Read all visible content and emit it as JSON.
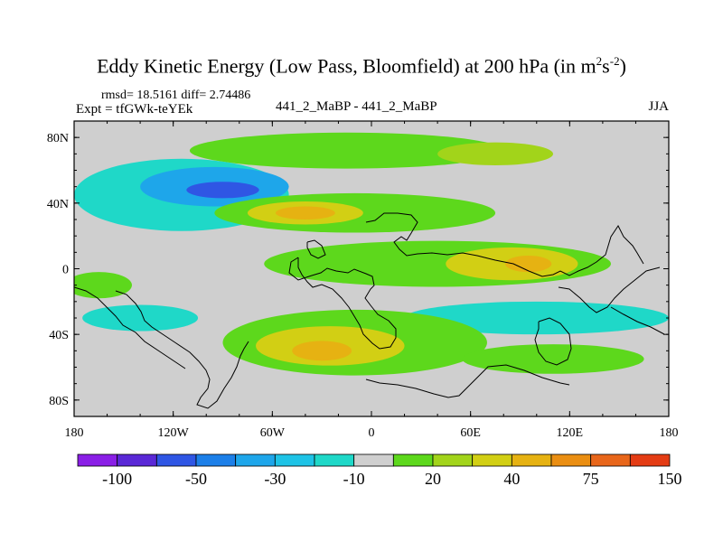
{
  "header": {
    "title_main": "Eddy Kinetic Energy (Low Pass, Bloomfield) at 200 hPa (in m",
    "title_sup1": "2",
    "title_mid": "s",
    "title_sup2": "-2",
    "title_end": ")",
    "stats": "rmsd= 18.5161 diff= 2.74486",
    "expt": "Expt = tfGWk-teYEk",
    "comparison": "441_2_MaBP - 441_2_MaBP",
    "season": "JJA"
  },
  "chart_data": {
    "type": "heatmap",
    "title": "Eddy Kinetic Energy (Low Pass, Bloomfield) at 200 hPa (in m2s-2)",
    "xlabel": "",
    "ylabel": "",
    "x_range": [
      -180,
      180
    ],
    "y_range": [
      -90,
      90
    ],
    "x_ticks": [
      {
        "value": -180,
        "label": "180"
      },
      {
        "value": -120,
        "label": "120W"
      },
      {
        "value": -60,
        "label": "60W"
      },
      {
        "value": 0,
        "label": "0"
      },
      {
        "value": 60,
        "label": "60E"
      },
      {
        "value": 120,
        "label": "120E"
      },
      {
        "value": 180,
        "label": "180"
      }
    ],
    "y_ticks": [
      {
        "value": 80,
        "label": "80N"
      },
      {
        "value": 40,
        "label": "40N"
      },
      {
        "value": 0,
        "label": "0"
      },
      {
        "value": -40,
        "label": "40S"
      },
      {
        "value": -80,
        "label": "80S"
      }
    ],
    "colorbar": {
      "colors": [
        "#8a1fe6",
        "#5a28d6",
        "#2f56e4",
        "#1c7fe8",
        "#1ea6ea",
        "#1ec3e6",
        "#1fd8c8",
        "#cfcfcf",
        "#5dd81c",
        "#a2d41a",
        "#d2cf14",
        "#e6b212",
        "#ea8e12",
        "#e8661a",
        "#e43c14"
      ],
      "labels": [
        {
          "after_box": 1,
          "text": "-100"
        },
        {
          "after_box": 3,
          "text": "-50"
        },
        {
          "after_box": 5,
          "text": "-30"
        },
        {
          "after_box": 7,
          "text": "-10"
        },
        {
          "after_box": 9,
          "text": "20"
        },
        {
          "after_box": 11,
          "text": "40"
        },
        {
          "after_box": 13,
          "text": "75"
        },
        {
          "after_box": 15,
          "text": "150"
        }
      ]
    },
    "regions": [
      {
        "name": "nh-highlat-band",
        "lon": -15,
        "lat": 72,
        "rlon": 95,
        "rlat": 11,
        "level": 8
      },
      {
        "name": "nh-highlat-band-east",
        "lon": 75,
        "lat": 70,
        "rlon": 35,
        "rlat": 7,
        "level": 9
      },
      {
        "name": "nh-midlat-neg",
        "lon": -115,
        "lat": 45,
        "rlon": 65,
        "rlat": 22,
        "level": 6
      },
      {
        "name": "nh-midlat-neg-core",
        "lon": -95,
        "lat": 50,
        "rlon": 45,
        "rlat": 12,
        "level": 4
      },
      {
        "name": "nh-midlat-neg-min",
        "lon": -90,
        "lat": 48,
        "rlon": 22,
        "rlat": 5,
        "level": 2
      },
      {
        "name": "nh-jet",
        "lon": -10,
        "lat": 34,
        "rlon": 85,
        "rlat": 12,
        "level": 8
      },
      {
        "name": "nh-jet-core",
        "lon": -40,
        "lat": 34,
        "rlon": 35,
        "rlat": 7,
        "level": 10
      },
      {
        "name": "nh-jet-max",
        "lon": -40,
        "lat": 34,
        "rlon": 18,
        "rlat": 4,
        "level": 11
      },
      {
        "name": "tropics-band",
        "lon": 40,
        "lat": 3,
        "rlon": 105,
        "rlat": 14,
        "level": 8
      },
      {
        "name": "tropics-core",
        "lon": 85,
        "lat": 3,
        "rlon": 40,
        "rlat": 10,
        "level": 10
      },
      {
        "name": "tropics-max",
        "lon": 95,
        "lat": 3,
        "rlon": 14,
        "rlat": 5,
        "level": 11
      },
      {
        "name": "tropics-west",
        "lon": -165,
        "lat": -10,
        "rlon": 20,
        "rlat": 8,
        "level": 8
      },
      {
        "name": "sh-neg-band",
        "lon": 100,
        "lat": -30,
        "rlon": 80,
        "rlat": 10,
        "level": 6
      },
      {
        "name": "sh-neg-west",
        "lon": -140,
        "lat": -30,
        "rlon": 35,
        "rlat": 8,
        "level": 6
      },
      {
        "name": "sh-jet",
        "lon": -10,
        "lat": -45,
        "rlon": 80,
        "rlat": 20,
        "level": 8
      },
      {
        "name": "sh-jet-core",
        "lon": -25,
        "lat": -47,
        "rlon": 45,
        "rlat": 12,
        "level": 10
      },
      {
        "name": "sh-jet-max",
        "lon": -30,
        "lat": -50,
        "rlon": 18,
        "rlat": 6,
        "level": 11
      },
      {
        "name": "sh-jet-east",
        "lon": 110,
        "lat": -55,
        "rlon": 55,
        "rlat": 9,
        "level": 8
      }
    ]
  }
}
